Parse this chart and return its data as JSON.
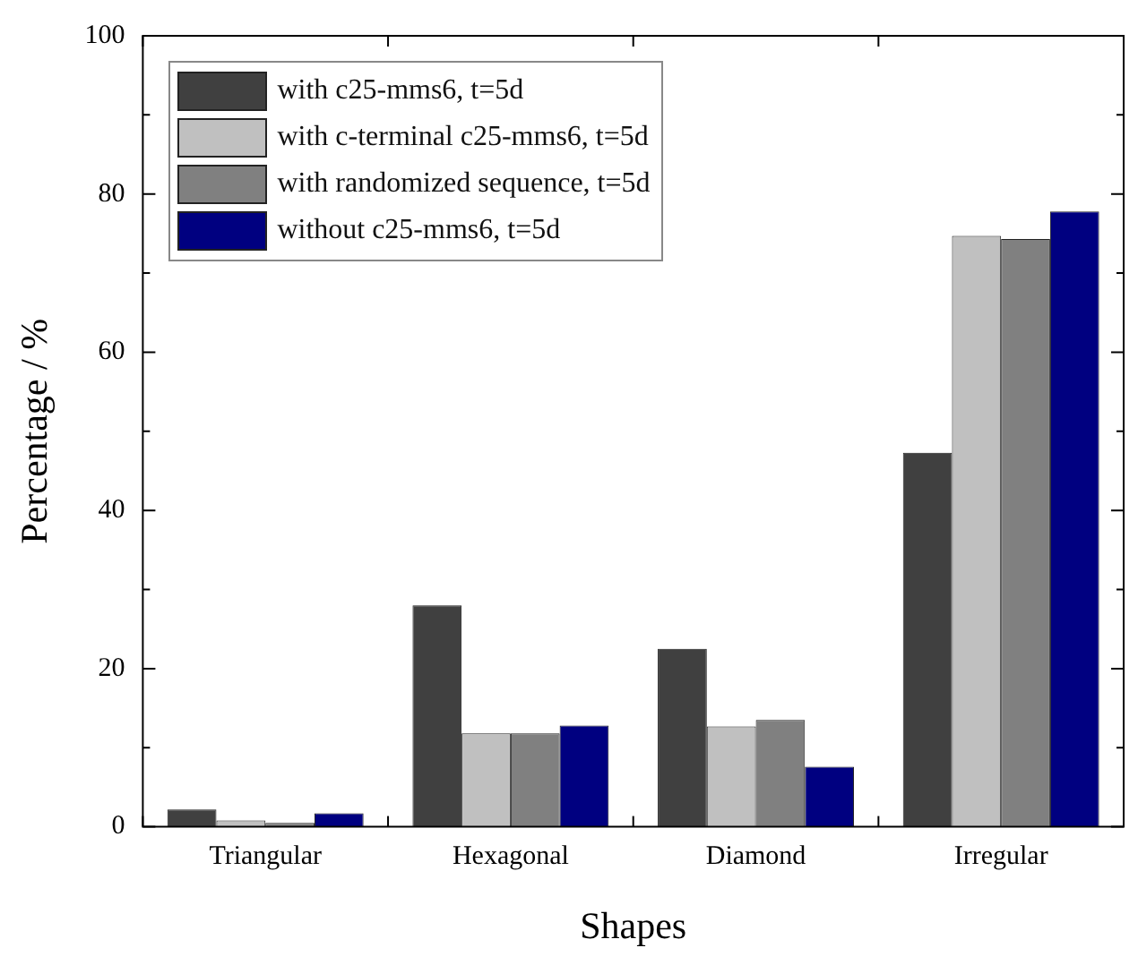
{
  "chart_data": {
    "type": "bar",
    "xlabel": "Shapes",
    "ylabel": "Percentage / %",
    "categories": [
      "Triangular",
      "Hexagonal",
      "Diamond",
      "Irregular"
    ],
    "series": [
      {
        "name": "with c25-mms6, t=5d",
        "color": "#404040",
        "values": [
          2.2,
          28.0,
          22.5,
          47.3
        ]
      },
      {
        "name": "with c-terminal c25-mms6, t=5d",
        "color": "#c0c0c0",
        "values": [
          0.8,
          11.8,
          12.7,
          74.7
        ]
      },
      {
        "name": "with randomized sequence, t=5d",
        "color": "#808080",
        "values": [
          0.5,
          11.8,
          13.5,
          74.3
        ]
      },
      {
        "name": "without c25-mms6, t=5d",
        "color": "#000080",
        "values": [
          1.7,
          12.8,
          7.6,
          77.8
        ]
      }
    ],
    "ylim": [
      0,
      100
    ],
    "yticks": [
      0,
      {
        "value": 10,
        "label": null
      },
      20,
      {
        "value": 30,
        "label": null
      },
      40,
      {
        "value": 50,
        "label": null
      },
      60,
      {
        "value": 70,
        "label": null
      },
      80,
      {
        "value": 90,
        "label": null
      },
      100
    ],
    "grid": false,
    "legend": "top left"
  }
}
